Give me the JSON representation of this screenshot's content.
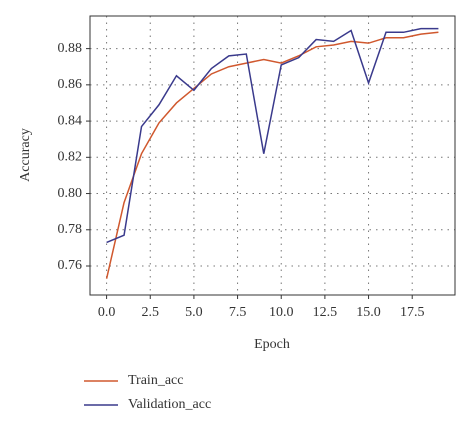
{
  "chart_data": {
    "type": "line",
    "x_label": "Epoch",
    "y_label": "Accuracy",
    "x": [
      0,
      1,
      2,
      3,
      4,
      5,
      6,
      7,
      8,
      9,
      10,
      11,
      12,
      13,
      14,
      15,
      16,
      17,
      18,
      19
    ],
    "series": [
      {
        "name": "Train_acc",
        "color": "#d0582e",
        "values": [
          0.753,
          0.795,
          0.822,
          0.839,
          0.85,
          0.858,
          0.866,
          0.87,
          0.872,
          0.874,
          0.872,
          0.876,
          0.881,
          0.882,
          0.884,
          0.883,
          0.886,
          0.886,
          0.888,
          0.889
        ]
      },
      {
        "name": "Validation_acc",
        "color": "#3a3a8c",
        "values": [
          0.773,
          0.777,
          0.837,
          0.849,
          0.865,
          0.857,
          0.869,
          0.876,
          0.877,
          0.822,
          0.871,
          0.875,
          0.885,
          0.884,
          0.89,
          0.861,
          0.889,
          0.889,
          0.891,
          0.891
        ]
      }
    ],
    "xlim": [
      -0.95,
      19.95
    ],
    "xticks": [
      {
        "value": 0,
        "label": "0.0"
      },
      2.5,
      {
        "value": 5,
        "label": "5.0"
      },
      7.5,
      {
        "value": 10,
        "label": "10.0"
      },
      12.5,
      {
        "value": 15,
        "label": "15.0"
      },
      17.5
    ],
    "ylim": [
      0.744,
      0.898
    ],
    "yticks": [
      0.76,
      0.78,
      {
        "value": 0.8,
        "label": "0.80"
      },
      0.82,
      0.84,
      0.86,
      0.88
    ],
    "grid": true,
    "legend": "below"
  }
}
